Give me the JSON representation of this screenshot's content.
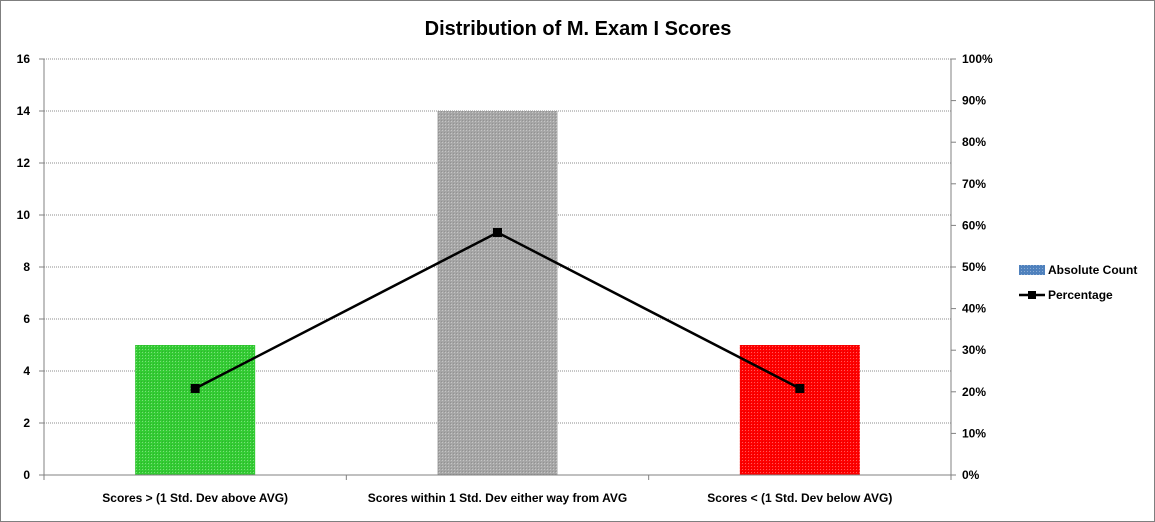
{
  "chart_data": {
    "type": "bar",
    "title": "Distribution of M. Exam I Scores",
    "xlabel": "",
    "ylabel": "",
    "categories": [
      "Scores > (1 Std. Dev above AVG)",
      "Scores within 1 Std. Dev either way from AVG",
      "Scores < (1 Std. Dev below AVG)"
    ],
    "series": [
      {
        "name": "Absolute Count",
        "type": "bar",
        "axis": "left",
        "values": [
          5,
          14,
          5
        ],
        "colors": [
          "#33cc33",
          "#a6a6a6",
          "#ff0000"
        ]
      },
      {
        "name": "Percentage",
        "type": "line",
        "axis": "right",
        "values": [
          20.8,
          58.3,
          20.8
        ],
        "color": "#000000"
      }
    ],
    "ylim": [
      0,
      16
    ],
    "yticks": [
      0,
      2,
      4,
      6,
      8,
      10,
      12,
      14,
      16
    ],
    "y2lim": [
      0,
      100
    ],
    "y2ticks": [
      "0%",
      "10%",
      "20%",
      "30%",
      "40%",
      "50%",
      "60%",
      "70%",
      "80%",
      "90%",
      "100%"
    ],
    "grid": true,
    "legend_position": "right",
    "legend_swatch_color": "#4f81bd"
  }
}
